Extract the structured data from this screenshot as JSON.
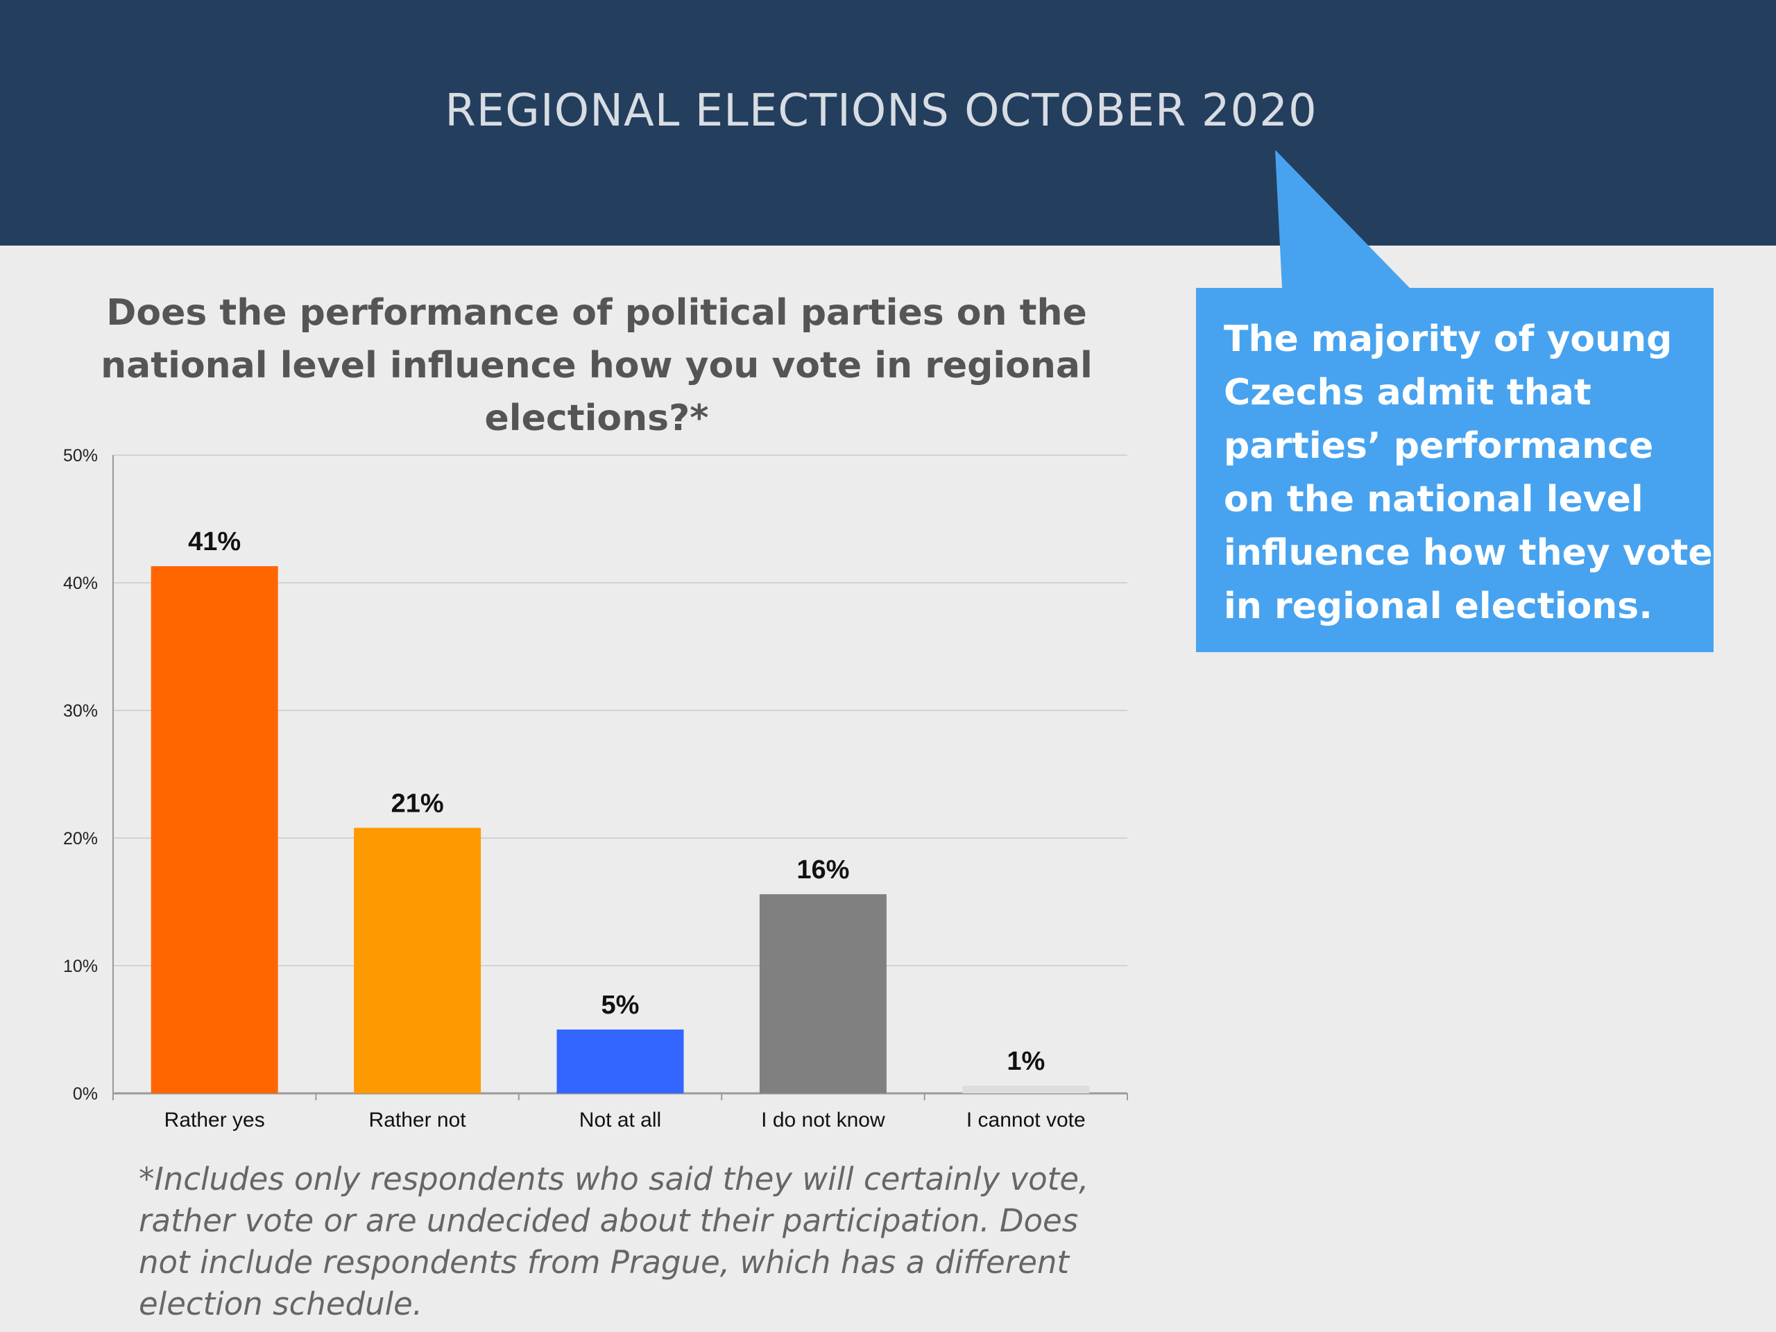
{
  "header": {
    "title": "REGIONAL ELECTIONS OCTOBER 2020"
  },
  "question": "Does the performance of political parties on the national level influence how you vote in regional elections?*",
  "callout": {
    "text": "The majority of young Czechs admit that parties’ performance on the national level influence how they vote in regional elections."
  },
  "footnote": "*Includes only respondents who said they will certainly vote, rather vote or are undecided about their participation. Does not include respondents from Prague, which has a different election schedule.",
  "colors": {
    "header_bg": "#243e5e",
    "callout_bg": "#47a3ef",
    "background": "#ececec"
  },
  "chart_data": {
    "type": "bar",
    "title": "",
    "xlabel": "",
    "ylabel": "",
    "categories": [
      "Rather yes",
      "Rather not",
      "Not at all",
      "I do not know",
      "I cannot vote"
    ],
    "values": [
      41.3,
      20.8,
      5.0,
      15.6,
      0.6
    ],
    "data_labels": [
      "41%",
      "21%",
      "5%",
      "16%",
      "1%"
    ],
    "colors": [
      "#ff6600",
      "#ff9900",
      "#3366ff",
      "#808080",
      "#dddddd"
    ],
    "ylim": [
      0,
      50
    ],
    "yticks": [
      0,
      10,
      20,
      30,
      40,
      50
    ],
    "ytick_labels": [
      "0%",
      "10%",
      "20%",
      "30%",
      "40%",
      "50%"
    ],
    "grid": true,
    "legend": "none"
  }
}
